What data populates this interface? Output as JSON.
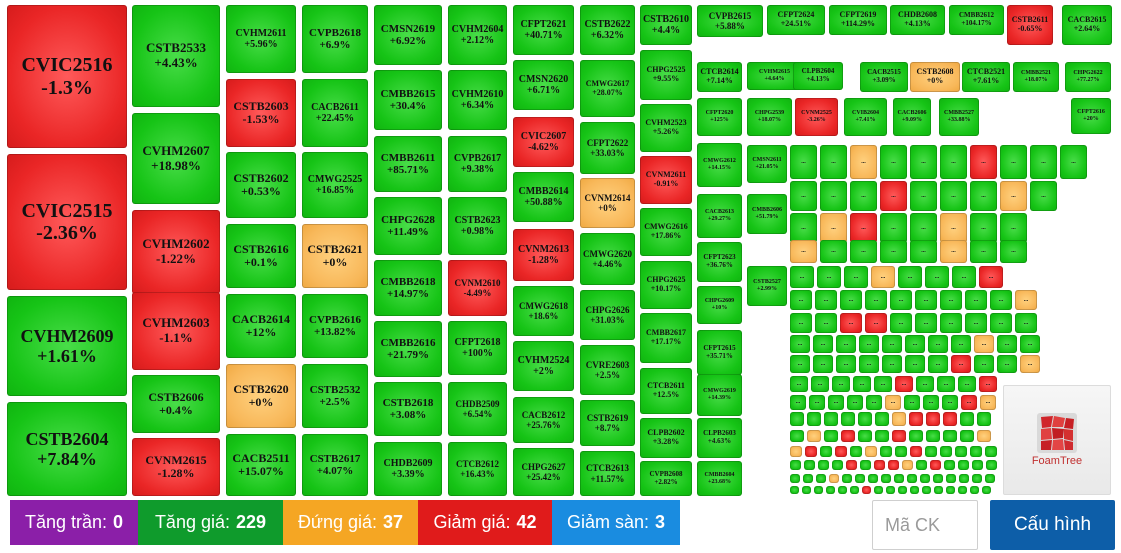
{
  "colors": {
    "up": "#16c416",
    "down": "#ea2626",
    "ref": "#f8b85a",
    "ceiling": "#8b1fa8",
    "floor": "#1a8ce0",
    "config": "#0d5ea8"
  },
  "tiles": [
    [
      "CVIC2516",
      "-1.3%"
    ],
    [
      "CVIC2515",
      "-2.36%"
    ],
    [
      "CVHM2609",
      "+1.61%"
    ],
    [
      "CSTB2604",
      "+7.84%"
    ],
    [
      "CSTB2533",
      "+4.43%"
    ],
    [
      "CVHM2607",
      "+18.98%"
    ],
    [
      "CVHM2602",
      "-1.22%"
    ],
    [
      "CVHM2603",
      "-1.1%"
    ],
    [
      "CSTB2606",
      "+0.4%"
    ],
    [
      "CVNM2615",
      "-1.28%"
    ],
    [
      "CVHM2611",
      "+5.96%"
    ],
    [
      "CSTB2603",
      "-1.53%"
    ],
    [
      "CSTB2602",
      "+0.53%"
    ],
    [
      "CSTB2616",
      "+0.1%"
    ],
    [
      "CACB2614",
      "+12%"
    ],
    [
      "CSTB2620",
      "+0%"
    ],
    [
      "CACB2511",
      "+15.07%"
    ],
    [
      "CVPB2618",
      "+6.9%"
    ],
    [
      "CACB2611",
      "+22.45%"
    ],
    [
      "CMWG2525",
      "+16.85%"
    ],
    [
      "CSTB2621",
      "+0%"
    ],
    [
      "CVPB2616",
      "+13.82%"
    ],
    [
      "CSTB2532",
      "+2.5%"
    ],
    [
      "CSTB2617",
      "+4.07%"
    ],
    [
      "CMSN2619",
      "+6.92%"
    ],
    [
      "CMBB2615",
      "+30.4%"
    ],
    [
      "CMBB2611",
      "+85.71%"
    ],
    [
      "CHPG2628",
      "+11.49%"
    ],
    [
      "CMBB2618",
      "+14.97%"
    ],
    [
      "CMBB2616",
      "+21.79%"
    ],
    [
      "CSTB2618",
      "+3.08%"
    ],
    [
      "CHDB2609",
      "+3.39%"
    ],
    [
      "CVHM2604",
      "+2.12%"
    ],
    [
      "CVHM2610",
      "+6.34%"
    ],
    [
      "CVPB2617",
      "+9.38%"
    ],
    [
      "CSTB2623",
      "+0.98%"
    ],
    [
      "CVNM2610",
      "-4.49%"
    ],
    [
      "CFPT2618",
      "+100%"
    ],
    [
      "CHDB2509",
      "+6.54%"
    ],
    [
      "CTCB2612",
      "+16.43%"
    ],
    [
      "CFPT2621",
      "+40.71%"
    ],
    [
      "CMSN2620",
      "+6.71%"
    ],
    [
      "CVIC2607",
      "-4.62%"
    ],
    [
      "CMBB2614",
      "+50.88%"
    ],
    [
      "CVNM2613",
      "-1.28%"
    ],
    [
      "CMWG2618",
      "+18.6%"
    ],
    [
      "CVHM2524",
      "+2%"
    ],
    [
      "CACB2612",
      "+25.76%"
    ],
    [
      "CHPG2627",
      "+25.42%"
    ],
    [
      "CSTB2622",
      "+6.32%"
    ],
    [
      "CMWG2617",
      "+28.07%"
    ],
    [
      "CFPT2622",
      "+33.03%"
    ],
    [
      "CVNM2614",
      "+0%"
    ],
    [
      "CMWG2620",
      "+4.46%"
    ],
    [
      "CHPG2626",
      "+31.03%"
    ],
    [
      "CVRE2603",
      "+2.5%"
    ],
    [
      "CSTB2619",
      "+8.7%"
    ],
    [
      "CTCB2613",
      "+11.57%"
    ],
    [
      "CSTB2610",
      "+4.4%"
    ],
    [
      "CHPG2525",
      "+9.55%"
    ],
    [
      "CVHM2523",
      "+5.26%"
    ],
    [
      "CVNM2611",
      "-0.91%"
    ],
    [
      "CMWG2616",
      "+17.86%"
    ],
    [
      "CHPG2625",
      "+10.17%"
    ],
    [
      "CMBB2617",
      "+17.17%"
    ],
    [
      "CTCB2611",
      "+12.5%"
    ],
    [
      "CLPB2602",
      "+3.28%"
    ],
    [
      "CVPB2608",
      "+2.82%"
    ],
    [
      "CVPB2615",
      "+5.88%"
    ],
    [
      "CTCB2614",
      "+7.14%"
    ],
    [
      "CFPT2620",
      "+125%"
    ],
    [
      "CMWG2612",
      "+14.15%"
    ],
    [
      "CACB2613",
      "+29.27%"
    ],
    [
      "CFPT2623",
      "+36.76%"
    ],
    [
      "CHPG2609",
      "+10%"
    ],
    [
      "CFPT2615",
      "+35.71%"
    ],
    [
      "CMWG2619",
      "+14.39%"
    ],
    [
      "CLPB2603",
      "+4.63%"
    ],
    [
      "CMBB2604",
      "+23.68%"
    ],
    [
      "CFPT2624",
      "+24.51%"
    ],
    [
      "CVHM2615",
      "+4.64%"
    ],
    [
      "CHPG2539",
      "+18.07%"
    ],
    [
      "CMSN2611",
      "+21.05%"
    ],
    [
      "CMBB2606",
      "+51.79%"
    ],
    [
      "CSTB2527",
      "+2.99%"
    ],
    [
      "CFPT2619",
      "+114.29%"
    ],
    [
      "CLPB2604",
      "+4.13%"
    ],
    [
      "CVNM2525",
      "-3.26%"
    ],
    [
      "CHDB2608",
      "+4.13%"
    ],
    [
      "CACB2515",
      "+3.09%"
    ],
    [
      "CVIB2604",
      "+7.41%"
    ],
    [
      "CSTB2608",
      "+0%"
    ],
    [
      "CACB2606",
      "+9.09%"
    ],
    [
      "CMBB2612",
      "+104.17%"
    ],
    [
      "CTCB2521",
      "+7.61%"
    ],
    [
      "CMBB2527",
      "+33.88%"
    ],
    [
      "CSTB2611",
      "-0.65%"
    ],
    [
      "CMBB2521",
      "+18.07%"
    ],
    [
      "CACB2615",
      "+2.64%"
    ],
    [
      "CHPG2622",
      "+77.27%"
    ],
    [
      "CFPT2616",
      "+20%"
    ]
  ],
  "more": "...",
  "logo": {
    "text": "FoamTree"
  },
  "legend": [
    {
      "label": "Tăng trần:",
      "count": "0"
    },
    {
      "label": "Tăng giá:",
      "count": "229"
    },
    {
      "label": "Đứng giá:",
      "count": "37"
    },
    {
      "label": "Giảm giá:",
      "count": "42"
    },
    {
      "label": "Giảm sàn:",
      "count": "3"
    }
  ],
  "search": {
    "placeholder": "Mã CK"
  },
  "config": {
    "label": "Cấu hình"
  }
}
